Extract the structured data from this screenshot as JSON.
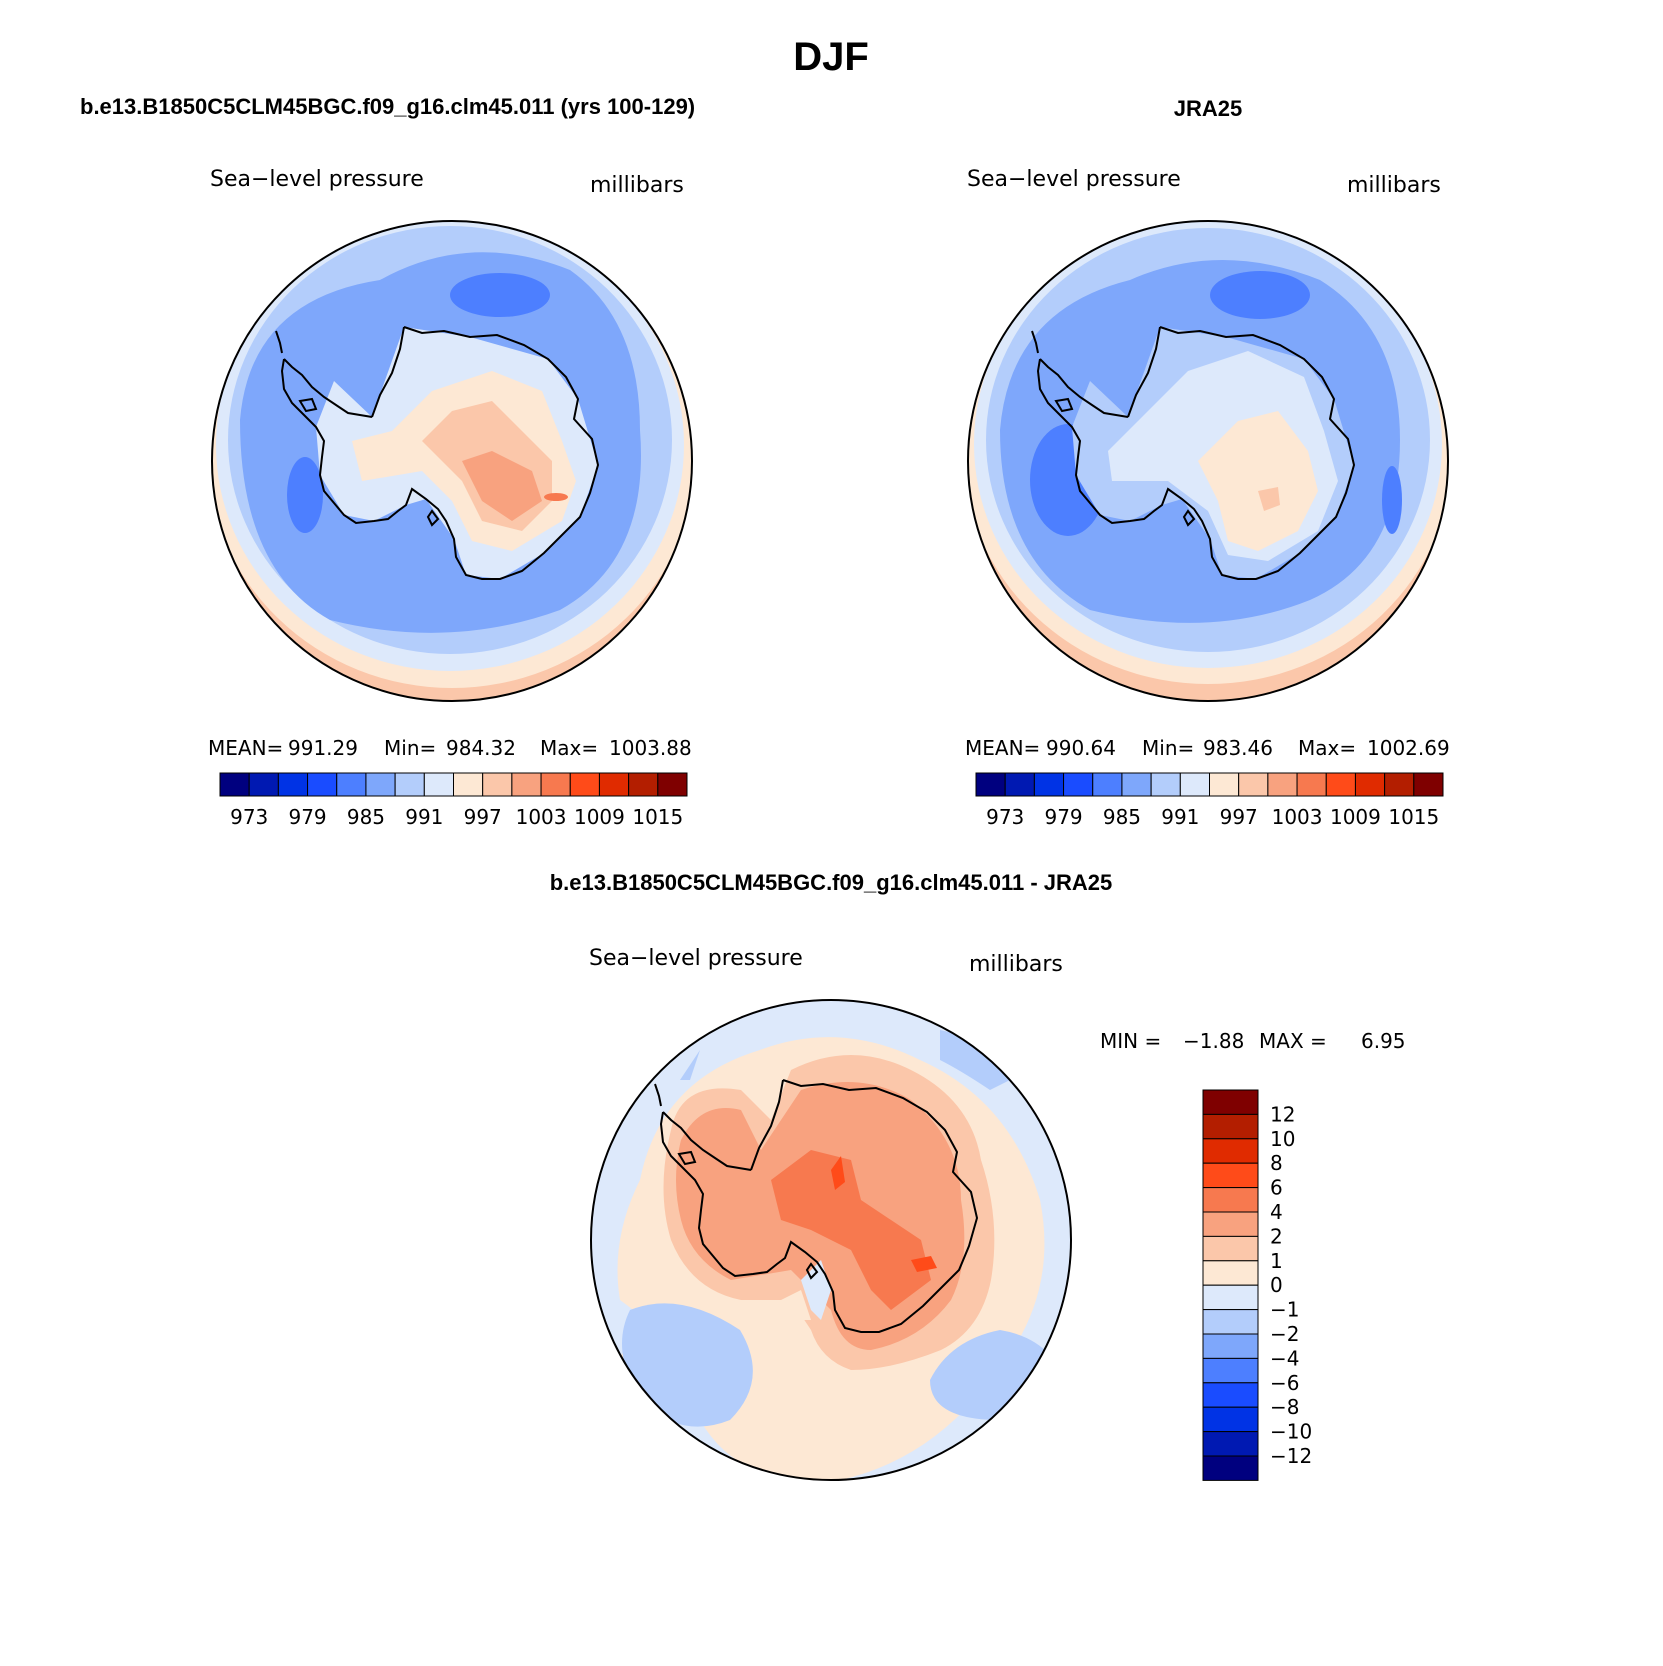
{
  "main_title": "DJF",
  "panels": {
    "model": {
      "heading": "b.e13.B1850C5CLM45BGC.f09_g16.clm45.011 (yrs 100-129)",
      "variable": "Sea−level pressure",
      "units": "millibars",
      "stats": {
        "mean_label": "MEAN=",
        "mean": "991.29",
        "min_label": "Min=",
        "min": "984.32",
        "max_label": "Max=",
        "max": "1003.88"
      },
      "colorbar_ticks": [
        "973",
        "979",
        "985",
        "991",
        "997",
        "1003",
        "1009",
        "1015"
      ]
    },
    "obs": {
      "heading": "JRA25",
      "variable": "Sea−level pressure",
      "units": "millibars",
      "stats": {
        "mean_label": "MEAN=",
        "mean": "990.64",
        "min_label": "Min=",
        "min": "983.46",
        "max_label": "Max=",
        "max": "1002.69"
      },
      "colorbar_ticks": [
        "973",
        "979",
        "985",
        "991",
        "997",
        "1003",
        "1009",
        "1015"
      ]
    },
    "diff": {
      "heading": "b.e13.B1850C5CLM45BGC.f09_g16.clm45.011 - JRA25",
      "variable": "Sea−level pressure",
      "units": "millibars",
      "min_label": "MIN =",
      "min": "−1.88",
      "max_label": "MAX =",
      "max": "6.95",
      "colorbar_ticks": [
        "12",
        "10",
        "8",
        "6",
        "4",
        "2",
        "1",
        "0",
        "−1",
        "−2",
        "−4",
        "−6",
        "−8",
        "−10",
        "−12"
      ]
    }
  },
  "colors": {
    "abs_scale": [
      "#00007f",
      "#0019b2",
      "#0033e5",
      "#1a4cff",
      "#4d7fff",
      "#7ea7fb",
      "#b3cdfb",
      "#dde9fb",
      "#fde8d4",
      "#fbc7aa",
      "#f8a27f",
      "#f7794f",
      "#ff4b19",
      "#e02b00",
      "#b31e00",
      "#7f0000"
    ],
    "diff_scale": [
      "#7f0000",
      "#b31e00",
      "#e02b00",
      "#ff4b19",
      "#f7794f",
      "#f8a27f",
      "#fbc7aa",
      "#fde8d4",
      "#dde9fb",
      "#b3cdfb",
      "#7ea7fb",
      "#4d7fff",
      "#1a4cff",
      "#0033e5",
      "#0019b2",
      "#00007f"
    ]
  }
}
